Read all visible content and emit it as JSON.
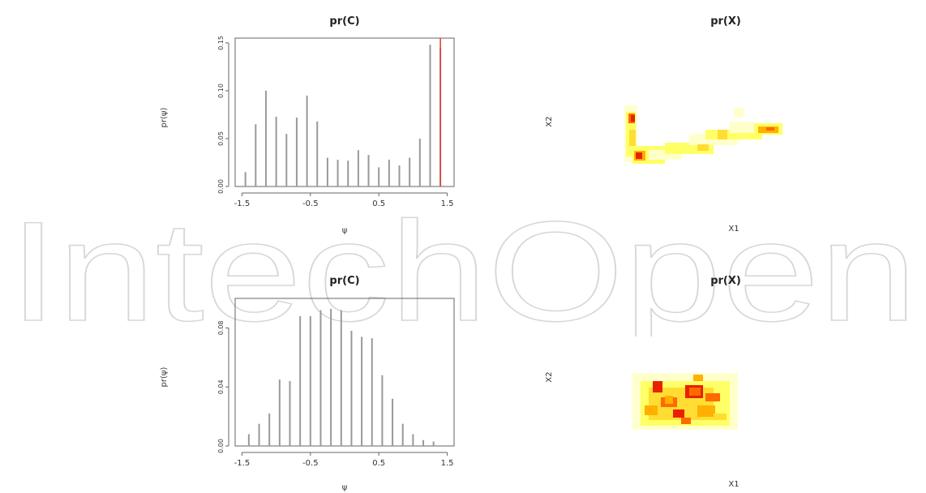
{
  "watermark": {
    "text": "IntechOpen",
    "color": "#d6d6d6"
  },
  "chart_data": [
    {
      "type": "bar",
      "title": "pr(C)",
      "xlabel": "ψ",
      "ylabel": "pr(ψ)",
      "xlim": [
        -1.6,
        1.6
      ],
      "ylim": [
        0,
        0.155
      ],
      "xticks": [
        -1.5,
        -0.5,
        0.5,
        1.5
      ],
      "xtick_labels": [
        "-1.5",
        "-0.5",
        "0.5",
        "1.5"
      ],
      "yticks": [
        0.0,
        0.05,
        0.1,
        0.15
      ],
      "ytick_labels": [
        "0.00",
        "0.05",
        "0.10",
        "0.15"
      ],
      "x": [
        -1.45,
        -1.3,
        -1.15,
        -1.0,
        -0.85,
        -0.7,
        -0.55,
        -0.4,
        -0.25,
        -0.1,
        0.05,
        0.2,
        0.35,
        0.5,
        0.65,
        0.8,
        0.95,
        1.1,
        1.25,
        1.4,
        1.55
      ],
      "values": [
        0.015,
        0.065,
        0.1,
        0.073,
        0.055,
        0.072,
        0.095,
        0.068,
        0.03,
        0.028,
        0.027,
        0.038,
        0.033,
        0.02,
        0.028,
        0.022,
        0.03,
        0.05,
        0.148,
        0.145,
        0.0
      ],
      "bar_color": "#999999",
      "reference_line": {
        "x": 1.4,
        "color": "#e03a2a"
      }
    },
    {
      "type": "heatmap",
      "title": "pr(X)",
      "xlabel": "X1",
      "ylabel": "X2",
      "colors": [
        "#ffffcc",
        "#ffff66",
        "#ffdd33",
        "#ffb000",
        "#ff6a00",
        "#e82000"
      ]
    },
    {
      "type": "bar",
      "title": "pr(C)",
      "xlabel": "ψ",
      "ylabel": "pr(ψ)",
      "xlim": [
        -1.6,
        1.6
      ],
      "ylim": [
        0,
        0.1
      ],
      "xticks": [
        -1.5,
        -0.5,
        0.5,
        1.5
      ],
      "xtick_labels": [
        "-1.5",
        "-0.5",
        "0.5",
        "1.5"
      ],
      "yticks": [
        0.0,
        0.04,
        0.08
      ],
      "ytick_labels": [
        "0.00",
        "0.04",
        "0.08"
      ],
      "x": [
        -1.4,
        -1.25,
        -1.1,
        -0.95,
        -0.8,
        -0.65,
        -0.5,
        -0.35,
        -0.2,
        -0.05,
        0.1,
        0.25,
        0.4,
        0.55,
        0.7,
        0.85,
        1.0,
        1.15,
        1.3,
        1.45
      ],
      "values": [
        0.008,
        0.015,
        0.022,
        0.045,
        0.044,
        0.088,
        0.088,
        0.092,
        0.093,
        0.092,
        0.078,
        0.074,
        0.073,
        0.048,
        0.032,
        0.015,
        0.008,
        0.004,
        0.003,
        0.0
      ],
      "bar_color": "#999999"
    },
    {
      "type": "heatmap",
      "title": "pr(X)",
      "xlabel": "X1",
      "ylabel": "X2",
      "colors": [
        "#ffffcc",
        "#ffff66",
        "#ffdd33",
        "#ffb000",
        "#ff6a00",
        "#e82000"
      ]
    }
  ]
}
